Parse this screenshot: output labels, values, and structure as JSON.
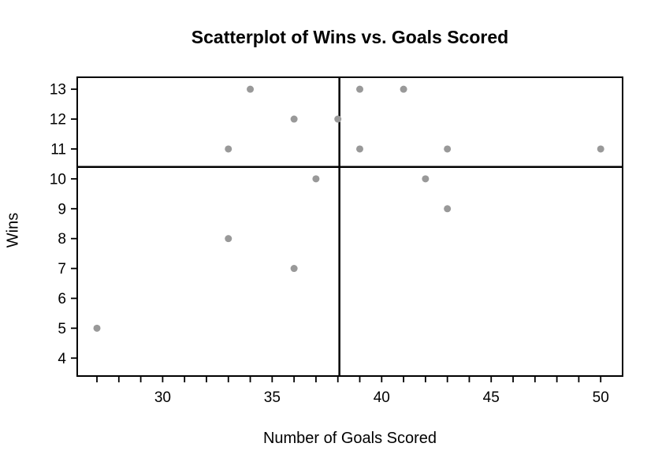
{
  "page": {
    "background": "#ffffff"
  },
  "chart_data": {
    "type": "scatter",
    "title": "Scatterplot of Wins vs. Goals Scored",
    "xlabel": "Number of Goals Scored",
    "ylabel": "Wins",
    "points": [
      {
        "x": 27,
        "y": 5
      },
      {
        "x": 33,
        "y": 8
      },
      {
        "x": 33,
        "y": 11
      },
      {
        "x": 34,
        "y": 13
      },
      {
        "x": 36,
        "y": 7
      },
      {
        "x": 36,
        "y": 12
      },
      {
        "x": 37,
        "y": 10
      },
      {
        "x": 38,
        "y": 12
      },
      {
        "x": 39,
        "y": 11
      },
      {
        "x": 39,
        "y": 13
      },
      {
        "x": 41,
        "y": 13
      },
      {
        "x": 42,
        "y": 10
      },
      {
        "x": 43,
        "y": 9
      },
      {
        "x": 43,
        "y": 11
      },
      {
        "x": 50,
        "y": 11
      }
    ],
    "xlim": [
      26.1,
      51.0
    ],
    "ylim": [
      3.4,
      13.4
    ],
    "x_ticks": {
      "start": 27,
      "end": 50,
      "step": 1,
      "labeled": [
        30,
        35,
        40,
        45,
        50
      ]
    },
    "y_ticks": {
      "start": 4,
      "end": 13,
      "step": 1,
      "labeled": [
        4,
        5,
        6,
        7,
        8,
        9,
        10,
        11,
        12,
        13
      ]
    },
    "reference_lines": {
      "vertical_x": 38.07,
      "horizontal_y": 10.4
    },
    "point_color": "#999999",
    "axis_color": "#000000",
    "grid": false,
    "legend": false
  }
}
